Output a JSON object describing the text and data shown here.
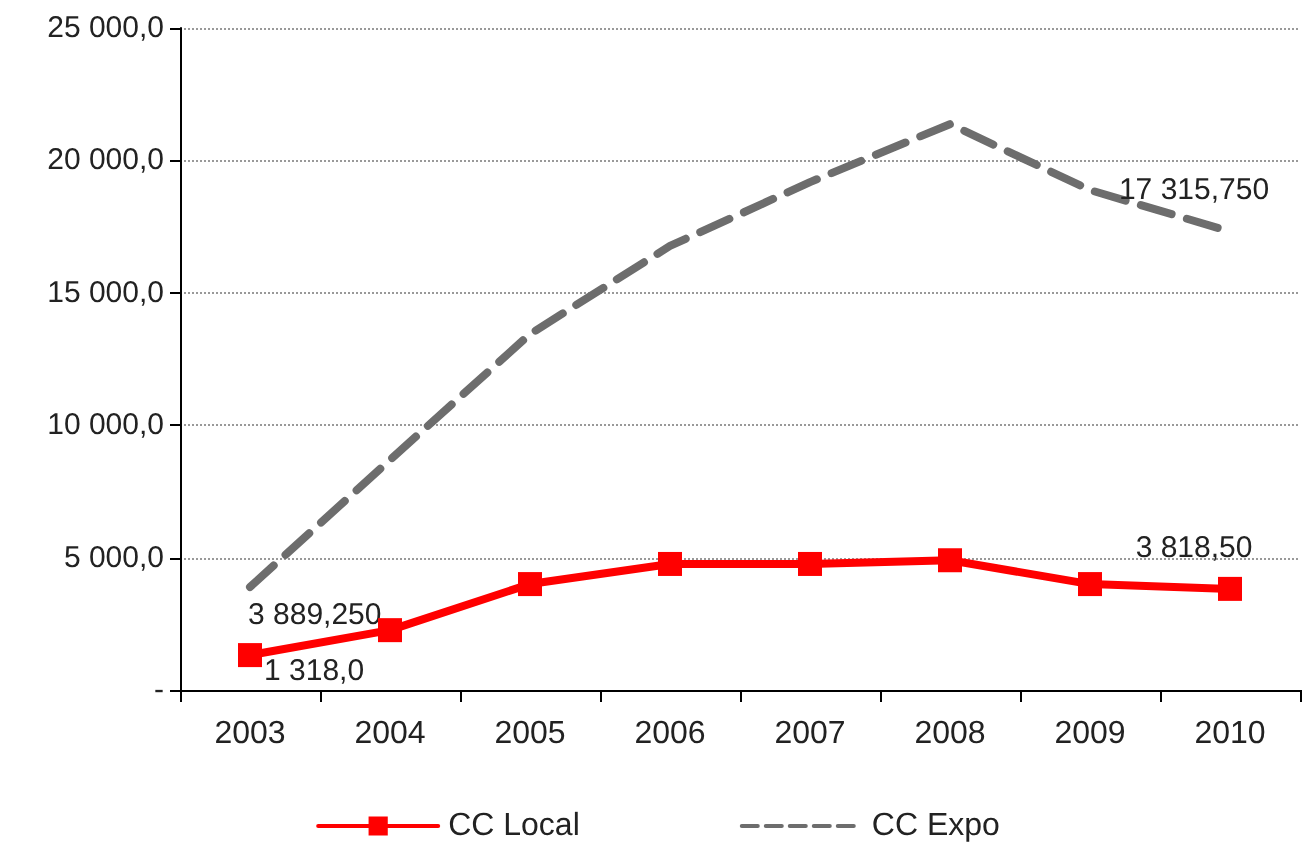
{
  "chart_data": {
    "type": "line",
    "categories": [
      "2003",
      "2004",
      "2005",
      "2006",
      "2007",
      "2008",
      "2009",
      "2010"
    ],
    "ylim": [
      0,
      25000
    ],
    "yticks": [
      {
        "value": 0,
        "label": "-"
      },
      {
        "value": 5000,
        "label": "5 000,0"
      },
      {
        "value": 10000,
        "label": "10 000,0"
      },
      {
        "value": 15000,
        "label": "15 000,0"
      },
      {
        "value": 20000,
        "label": "20 000,0"
      },
      {
        "value": 25000,
        "label": "25 000,0"
      }
    ],
    "grid": "y",
    "legend": "bottom",
    "series": [
      {
        "name": "CC Local",
        "color": "#ff0000",
        "marker": "square",
        "line_style": "solid",
        "values": [
          1318,
          2260,
          4000,
          4760,
          4760,
          4900,
          4000,
          3818.5
        ],
        "value_labels": [
          "1 318,0",
          null,
          null,
          null,
          null,
          null,
          null,
          "3 818,50"
        ]
      },
      {
        "name": "CC Expo",
        "color": "#6d6d6d",
        "marker": "none",
        "line_style": "dashed",
        "values": [
          3889.25,
          8690,
          13440,
          16770,
          19180,
          21370,
          18880,
          17315.75
        ],
        "value_labels": [
          "3 889,250",
          null,
          null,
          null,
          null,
          null,
          null,
          "17 315,750"
        ]
      }
    ]
  }
}
